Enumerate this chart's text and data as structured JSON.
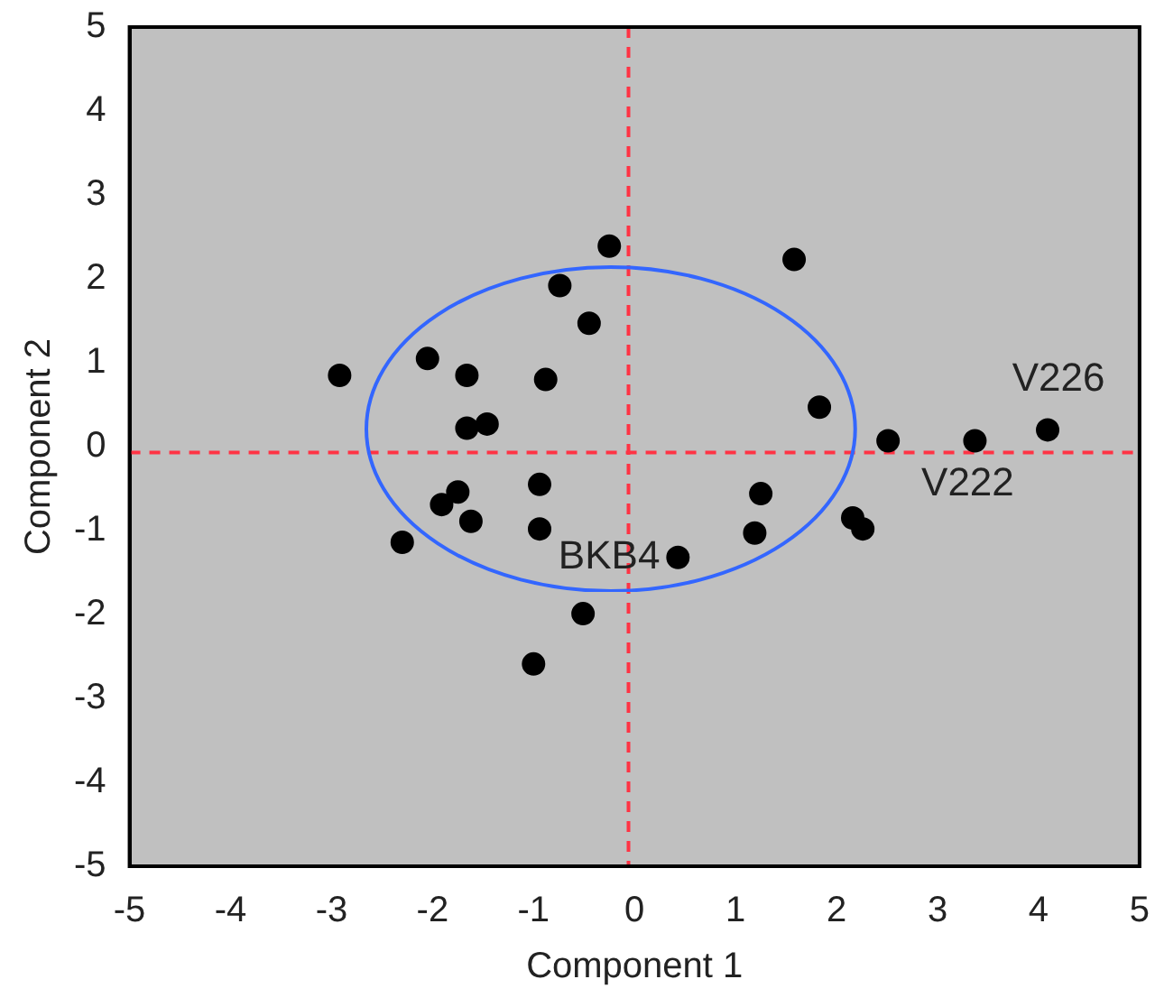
{
  "chart_data": {
    "type": "scatter",
    "xlabel": "Component 1",
    "ylabel": "Component 2",
    "xlim": [
      -5,
      5
    ],
    "ylim": [
      -5,
      5
    ],
    "xticks": [
      -5,
      -4,
      -3,
      -2,
      -1,
      0,
      1,
      2,
      3,
      4,
      5
    ],
    "yticks": [
      -5,
      -4,
      -3,
      -2,
      -1,
      0,
      1,
      2,
      3,
      4,
      5
    ],
    "grid": false,
    "legend": false,
    "series": [
      {
        "color": "#000000",
        "marker": "circle",
        "x": [
          -2.92,
          -2.05,
          -1.66,
          -0.88,
          -0.74,
          -0.45,
          -0.25,
          -1.66,
          -1.46,
          -1.91,
          -1.75,
          -1.62,
          -2.3,
          -0.94,
          -0.94,
          -0.51,
          -1.0,
          0.43,
          1.58,
          1.83,
          2.51,
          3.37,
          4.09,
          1.25,
          1.19,
          2.16,
          2.26
        ],
        "values": [
          0.85,
          1.05,
          0.85,
          0.8,
          1.92,
          1.47,
          2.39,
          0.22,
          0.27,
          -0.69,
          -0.54,
          -0.89,
          -1.14,
          -0.45,
          -0.98,
          -1.99,
          -2.59,
          -1.32,
          2.23,
          0.47,
          0.07,
          0.07,
          0.2,
          -0.56,
          -1.03,
          -0.85,
          -0.98
        ]
      }
    ],
    "ref_lines": [
      {
        "axis": "x",
        "value": -0.06,
        "color": "#ff3344",
        "line_style": "dashed"
      },
      {
        "axis": "y",
        "value": -0.07,
        "color": "#ff3344",
        "line_style": "dashed"
      }
    ],
    "annotations": [
      {
        "text": "V226",
        "x": 4.09,
        "y": 0.2
      },
      {
        "text": "V222",
        "x": 3.37,
        "y": 0.07
      },
      {
        "text": "BKB4",
        "x": 0.43,
        "y": -1.32
      }
    ]
  }
}
